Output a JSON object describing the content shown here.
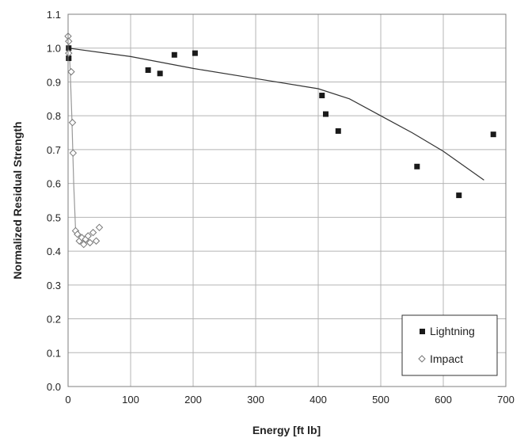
{
  "chart_data": {
    "type": "scatter",
    "xlabel": "Energy [ft lb]",
    "ylabel": "Normalized Residual Strength",
    "xlim": [
      0,
      700
    ],
    "ylim": [
      0,
      1.1
    ],
    "x_ticks": [
      "0",
      "100",
      "200",
      "300",
      "400",
      "500",
      "600",
      "700"
    ],
    "y_ticks": [
      "0.0",
      "0.1",
      "0.2",
      "0.3",
      "0.4",
      "0.5",
      "0.6",
      "0.7",
      "0.8",
      "0.9",
      "1.0",
      "1.1"
    ],
    "grid": true,
    "legend_position": "bottom-right",
    "series": [
      {
        "name": "Lightning",
        "marker": "filled-square",
        "color": "#1a1a1a",
        "points": [
          {
            "x": 1,
            "y": 1.0
          },
          {
            "x": 1,
            "y": 0.97
          },
          {
            "x": 128,
            "y": 0.935
          },
          {
            "x": 147,
            "y": 0.925
          },
          {
            "x": 170,
            "y": 0.98
          },
          {
            "x": 203,
            "y": 0.985
          },
          {
            "x": 406,
            "y": 0.86
          },
          {
            "x": 412,
            "y": 0.805
          },
          {
            "x": 432,
            "y": 0.755
          },
          {
            "x": 558,
            "y": 0.65
          },
          {
            "x": 625,
            "y": 0.565
          },
          {
            "x": 680,
            "y": 0.745
          }
        ],
        "trend": [
          {
            "x": 0,
            "y": 1.0
          },
          {
            "x": 100,
            "y": 0.975
          },
          {
            "x": 200,
            "y": 0.94
          },
          {
            "x": 300,
            "y": 0.91
          },
          {
            "x": 400,
            "y": 0.88
          },
          {
            "x": 450,
            "y": 0.85
          },
          {
            "x": 500,
            "y": 0.8
          },
          {
            "x": 550,
            "y": 0.75
          },
          {
            "x": 600,
            "y": 0.695
          },
          {
            "x": 665,
            "y": 0.61
          }
        ]
      },
      {
        "name": "Impact",
        "marker": "open-diamond",
        "color": "#777777",
        "points": [
          {
            "x": 0,
            "y": 1.035
          },
          {
            "x": 1,
            "y": 1.02
          },
          {
            "x": 1,
            "y": 0.985
          },
          {
            "x": 5,
            "y": 0.93
          },
          {
            "x": 7,
            "y": 0.78
          },
          {
            "x": 8,
            "y": 0.69
          },
          {
            "x": 12,
            "y": 0.46
          },
          {
            "x": 15,
            "y": 0.45
          },
          {
            "x": 18,
            "y": 0.43
          },
          {
            "x": 22,
            "y": 0.44
          },
          {
            "x": 25,
            "y": 0.42
          },
          {
            "x": 28,
            "y": 0.435
          },
          {
            "x": 32,
            "y": 0.445
          },
          {
            "x": 35,
            "y": 0.425
          },
          {
            "x": 40,
            "y": 0.455
          },
          {
            "x": 45,
            "y": 0.43
          },
          {
            "x": 50,
            "y": 0.47
          }
        ],
        "trend": [
          {
            "x": 0,
            "y": 1.03
          },
          {
            "x": 3,
            "y": 0.95
          },
          {
            "x": 6,
            "y": 0.8
          },
          {
            "x": 9,
            "y": 0.6
          },
          {
            "x": 12,
            "y": 0.46
          }
        ]
      }
    ]
  }
}
